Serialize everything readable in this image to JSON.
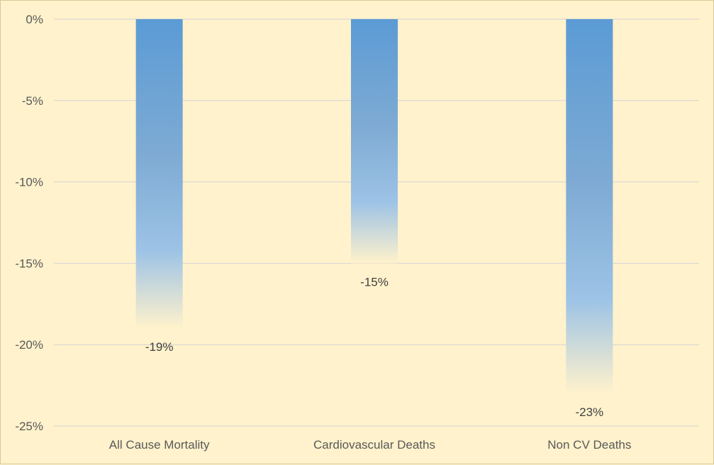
{
  "chart_data": {
    "type": "bar",
    "title": "",
    "xlabel": "",
    "ylabel": "",
    "categories": [
      "All Cause Mortality",
      "Cardiovascular Deaths",
      "Non CV Deaths"
    ],
    "values": [
      -19,
      -15,
      -23
    ],
    "data_labels": [
      "-19%",
      "-15%",
      "-23%"
    ],
    "ylim": [
      -25,
      0
    ],
    "yticks": [
      0,
      -5,
      -10,
      -15,
      -20,
      -25
    ],
    "ytick_labels": [
      "0%",
      "-5%",
      "-10%",
      "-15%",
      "-20%",
      "-25%"
    ],
    "grid": true,
    "legend": "none",
    "colors": {
      "background": "#fff2cc",
      "bar_top": "#5b9bd5",
      "bar_mid": "#9dc3e6",
      "bar_bottom": "#fff2cc",
      "grid": "#d3d3d3",
      "text": "#595959"
    }
  }
}
